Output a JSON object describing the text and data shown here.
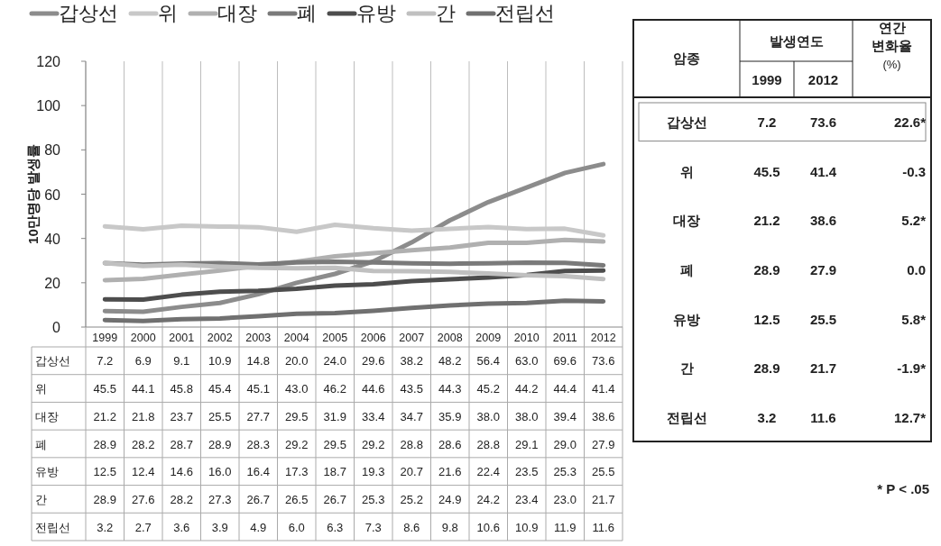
{
  "chart_data": [
    {
      "type": "line",
      "ylabel": "10만명당 발생률",
      "categories": [
        "1999",
        "2000",
        "2001",
        "2002",
        "2003",
        "2004",
        "2005",
        "2006",
        "2007",
        "2008",
        "2009",
        "2010",
        "2011",
        "2012"
      ],
      "series": [
        {
          "name": "갑상선",
          "color": "#8c8c8c",
          "values": [
            7.2,
            6.9,
            9.1,
            10.9,
            14.8,
            20.0,
            24.0,
            29.6,
            38.2,
            48.2,
            56.4,
            63.0,
            69.6,
            73.6
          ],
          "value_labels": [
            "7.2",
            "6.9",
            "9.1",
            "10.9",
            "14.8",
            "20.0",
            "24.0",
            "29.6",
            "38.2",
            "48.2",
            "56.4",
            "63.0",
            "69.6",
            "73.6"
          ]
        },
        {
          "name": "위",
          "color": "#c8c8c8",
          "values": [
            45.5,
            44.1,
            45.8,
            45.4,
            45.1,
            43.0,
            46.2,
            44.6,
            43.5,
            44.3,
            45.2,
            44.2,
            44.4,
            41.4
          ],
          "value_labels": [
            "45.5",
            "44.1",
            "45.8",
            "45.4",
            "45.1",
            "43.0",
            "46.2",
            "44.6",
            "43.5",
            "44.3",
            "45.2",
            "44.2",
            "44.4",
            "41.4"
          ]
        },
        {
          "name": "대장",
          "color": "#b0b0b0",
          "values": [
            21.2,
            21.8,
            23.7,
            25.5,
            27.7,
            29.5,
            31.9,
            33.4,
            34.7,
            35.9,
            38.0,
            38.0,
            39.4,
            38.6
          ],
          "value_labels": [
            "21.2",
            "21.8",
            "23.7",
            "25.5",
            "27.7",
            "29.5",
            "31.9",
            "33.4",
            "34.7",
            "35.9",
            "38.0",
            "38.0",
            "39.4",
            "38.6"
          ]
        },
        {
          "name": "폐",
          "color": "#7a7a7a",
          "values": [
            28.9,
            28.2,
            28.7,
            28.9,
            28.3,
            29.2,
            29.5,
            29.2,
            28.8,
            28.6,
            28.8,
            29.1,
            29.0,
            27.9
          ],
          "value_labels": [
            "28.9",
            "28.2",
            "28.7",
            "28.9",
            "28.3",
            "29.2",
            "29.5",
            "29.2",
            "28.8",
            "28.6",
            "28.8",
            "29.1",
            "29.0",
            "27.9"
          ]
        },
        {
          "name": "유방",
          "color": "#4d4d4d",
          "values": [
            12.5,
            12.4,
            14.6,
            16.0,
            16.4,
            17.3,
            18.7,
            19.3,
            20.7,
            21.6,
            22.4,
            23.5,
            25.3,
            25.5
          ],
          "value_labels": [
            "12.5",
            "12.4",
            "14.6",
            "16.0",
            "16.4",
            "17.3",
            "18.7",
            "19.3",
            "20.7",
            "21.6",
            "22.4",
            "23.5",
            "25.3",
            "25.5"
          ]
        },
        {
          "name": "간",
          "color": "#c0c0c0",
          "values": [
            28.9,
            27.6,
            28.2,
            27.3,
            26.7,
            26.5,
            26.7,
            25.3,
            25.2,
            24.9,
            24.2,
            23.4,
            23.0,
            21.7
          ],
          "value_labels": [
            "28.9",
            "27.6",
            "28.2",
            "27.3",
            "26.7",
            "26.5",
            "26.7",
            "25.3",
            "25.2",
            "24.9",
            "24.2",
            "23.4",
            "23.0",
            "21.7"
          ]
        },
        {
          "name": "전립선",
          "color": "#707070",
          "values": [
            3.2,
            2.7,
            3.6,
            3.9,
            4.9,
            6.0,
            6.3,
            7.3,
            8.6,
            9.8,
            10.6,
            10.9,
            11.9,
            11.6
          ],
          "value_labels": [
            "3.2",
            "2.7",
            "3.6",
            "3.9",
            "4.9",
            "6.0",
            "6.3",
            "7.3",
            "8.6",
            "9.8",
            "10.6",
            "10.9",
            "11.9",
            "11.6"
          ]
        }
      ],
      "ylim": [
        0,
        120
      ],
      "yticks": [
        0,
        20,
        40,
        60,
        80,
        100,
        120
      ],
      "grid": "x",
      "legend": "top",
      "marker": "none",
      "line_style": "solid"
    },
    {
      "type": "other",
      "annotations": [
        "암종",
        "발생연도",
        "연간 변화율 (%)",
        "1999",
        "2012",
        "갑상선",
        "7.2",
        "73.6",
        "22.6*",
        "위",
        "45.5",
        "41.4",
        "-0.3",
        "대장",
        "21.2",
        "38.6",
        "5.2*",
        "폐",
        "28.9",
        "27.9",
        "0.0",
        "유방",
        "12.5",
        "25.5",
        "5.8*",
        "간",
        "28.9",
        "21.7",
        "-1.9*",
        "전립선",
        "3.2",
        "11.6",
        "12.7*",
        "* P < .05"
      ]
    }
  ]
}
